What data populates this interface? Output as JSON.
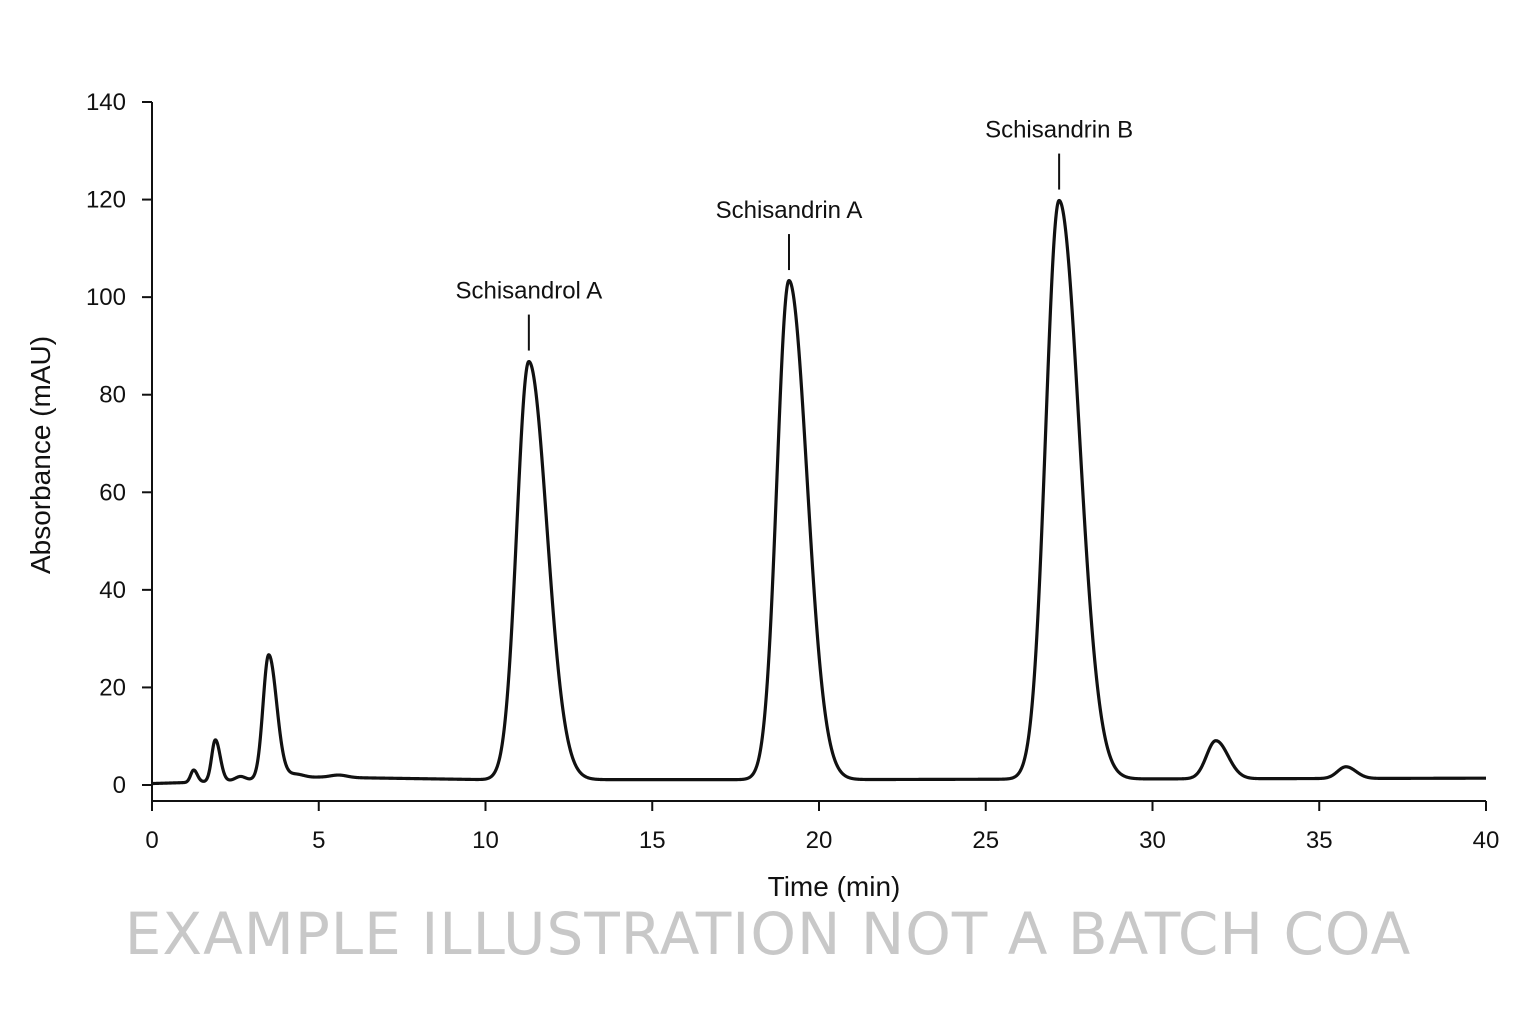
{
  "chart_data": {
    "type": "line",
    "title": "",
    "xlabel": "Time (min)",
    "ylabel": "Absorbance (mAU)",
    "xlim": [
      0,
      40
    ],
    "ylim": [
      0,
      140
    ],
    "x_ticks": [
      0,
      5,
      10,
      15,
      20,
      25,
      30,
      35,
      40
    ],
    "y_ticks": [
      0,
      20,
      40,
      60,
      80,
      100,
      120,
      140
    ],
    "grid": false,
    "line_color": "#111111",
    "baseline": [
      {
        "x": 0,
        "y": 0.3
      },
      {
        "x": 1,
        "y": 0.5
      },
      {
        "x": 5,
        "y": 1.6
      },
      {
        "x": 10,
        "y": 1.1
      },
      {
        "x": 20,
        "y": 1.1
      },
      {
        "x": 40,
        "y": 1.4
      }
    ],
    "peaks": [
      {
        "rt": 1.25,
        "height": 2.5,
        "width": 0.09,
        "tailing": 1.2
      },
      {
        "rt": 1.9,
        "height": 8.5,
        "width": 0.11,
        "tailing": 1.3
      },
      {
        "rt": 2.65,
        "height": 0.8,
        "width": 0.15,
        "tailing": 1.0
      },
      {
        "rt": 3.5,
        "height": 25.5,
        "width": 0.17,
        "tailing": 1.4
      },
      {
        "rt": 4.3,
        "height": 0.8,
        "width": 0.25,
        "tailing": 1.0
      },
      {
        "rt": 5.6,
        "height": 0.5,
        "width": 0.25,
        "tailing": 1.0
      },
      {
        "rt": 11.3,
        "height": 85.7,
        "width": 0.36,
        "tailing": 1.5
      },
      {
        "rt": 19.1,
        "height": 102.3,
        "width": 0.36,
        "tailing": 1.5
      },
      {
        "rt": 27.2,
        "height": 118.6,
        "width": 0.4,
        "tailing": 1.5
      },
      {
        "rt": 31.9,
        "height": 7.8,
        "width": 0.28,
        "tailing": 1.3
      },
      {
        "rt": 35.8,
        "height": 2.4,
        "width": 0.25,
        "tailing": 1.2
      }
    ],
    "annotations": [
      {
        "label": "Schisandrol A",
        "x": 11.3,
        "y": 87
      },
      {
        "label": "Schisandrin A",
        "x": 19.1,
        "y": 103.5
      },
      {
        "label": "Schisandrin B",
        "x": 27.2,
        "y": 120
      }
    ]
  },
  "watermark": "EXAMPLE ILLUSTRATION NOT A BATCH COA"
}
